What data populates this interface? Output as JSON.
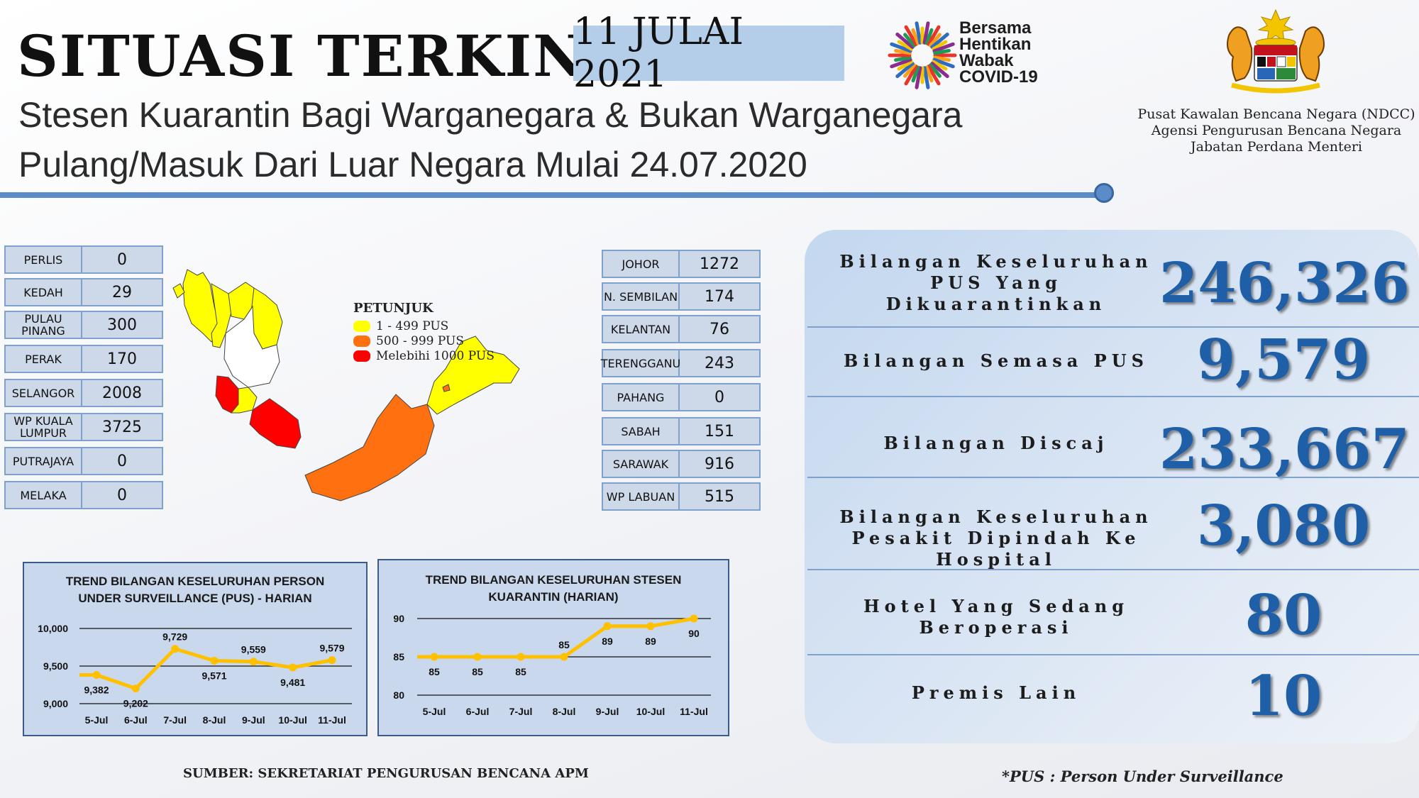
{
  "header": {
    "title": "SITUASI TERKINI",
    "date": "11 JULAI 2021",
    "subtitle_line1": "Stesen Kuarantin Bagi Warganegara & Bukan Warganegara",
    "subtitle_line2": "Pulang/Masuk Dari Luar Negara Mulai 24.07.2020"
  },
  "branding": {
    "campaign_lines": [
      "Bersama",
      "Hentikan",
      "Wabak",
      "COVID-19"
    ],
    "agency_lines": [
      "Pusat Kawalan Bencana Negara (NDCC)",
      "Agensi Pengurusan Bencana Negara",
      "Jabatan Perdana Menteri"
    ],
    "crest_icon": "malaysia-coat-of-arms-icon",
    "campaign_icon": "starburst-logo-icon"
  },
  "states_left": [
    {
      "name": "PERLIS",
      "value": "0"
    },
    {
      "name": "KEDAH",
      "value": "29"
    },
    {
      "name": "PULAU PINANG",
      "value": "300"
    },
    {
      "name": "PERAK",
      "value": "170"
    },
    {
      "name": "SELANGOR",
      "value": "2008"
    },
    {
      "name": "WP KUALA LUMPUR",
      "value": "3725"
    },
    {
      "name": "PUTRAJAYA",
      "value": "0"
    },
    {
      "name": "MELAKA",
      "value": "0"
    }
  ],
  "states_right": [
    {
      "name": "JOHOR",
      "value": "1272"
    },
    {
      "name": "N. SEMBILAN",
      "value": "174"
    },
    {
      "name": "KELANTAN",
      "value": "76"
    },
    {
      "name": "TERENGGANU",
      "value": "243"
    },
    {
      "name": "PAHANG",
      "value": "0"
    },
    {
      "name": "SABAH",
      "value": "151"
    },
    {
      "name": "SARAWAK",
      "value": "916"
    },
    {
      "name": "WP LABUAN",
      "value": "515"
    }
  ],
  "legend": {
    "title": "PETUNJUK",
    "items": [
      {
        "label": "1 - 499 PUS",
        "color": "#ffff00"
      },
      {
        "label": "500 - 999 PUS",
        "color": "#ff7010"
      },
      {
        "label": "Melebihi 1000 PUS",
        "color": "#ff0000"
      }
    ]
  },
  "map_colors": {
    "yellow": "#ffff00",
    "orange": "#ff7010",
    "red": "#ff0000",
    "white": "#ffffff"
  },
  "chart_data": [
    {
      "type": "line",
      "title_line1": "TREND BILANGAN KESELURUHAN PERSON",
      "title_line2": "UNDER SURVEILLANCE (PUS) - HARIAN",
      "categories": [
        "5-Jul",
        "6-Jul",
        "7-Jul",
        "8-Jul",
        "9-Jul",
        "10-Jul",
        "11-Jul"
      ],
      "values": [
        9382,
        9202,
        9729,
        9571,
        9559,
        9481,
        9579
      ],
      "value_labels": [
        "9,382",
        "9,202",
        "9,729",
        "9,571",
        "9,559",
        "9,481",
        "9,579"
      ],
      "ylim": [
        9000,
        10000
      ],
      "yticks": [
        "10,000",
        "9,500",
        "9,000"
      ],
      "ytick_values": [
        10000,
        9500,
        9000
      ],
      "color": "#ffc000",
      "grid": true
    },
    {
      "type": "line",
      "title_line1": "TREND BILANGAN KESELURUHAN STESEN",
      "title_line2": "KUARANTIN (HARIAN)",
      "categories": [
        "5-Jul",
        "6-Jul",
        "7-Jul",
        "8-Jul",
        "9-Jul",
        "10-Jul",
        "11-Jul"
      ],
      "values": [
        85,
        85,
        85,
        85,
        89,
        89,
        90
      ],
      "value_labels": [
        "85",
        "85",
        "85",
        "85",
        "89",
        "89",
        "90"
      ],
      "ylim": [
        80,
        90
      ],
      "yticks": [
        "90",
        "85",
        "80"
      ],
      "ytick_values": [
        90,
        85,
        80
      ],
      "color": "#ffc000",
      "grid": true
    }
  ],
  "stats": [
    {
      "label_lines": [
        "Bilangan Keseluruhan",
        "PUS Yang",
        "Dikuarantinkan"
      ],
      "value": "246,326"
    },
    {
      "label_lines": [
        "Bilangan Semasa PUS"
      ],
      "value": "9,579"
    },
    {
      "label_lines": [
        "Bilangan Discaj"
      ],
      "value": "233,667"
    },
    {
      "label_lines": [
        "Bilangan Keseluruhan",
        "Pesakit Dipindah Ke Hospital"
      ],
      "value": "3,080"
    },
    {
      "label_lines": [
        "Hotel Yang Sedang",
        "Beroperasi"
      ],
      "value": "80"
    },
    {
      "label_lines": [
        "Premis Lain"
      ],
      "value": "10"
    }
  ],
  "footer": {
    "source": "SUMBER: SEKRETARIAT PENGURUSAN BENCANA APM",
    "footnote": "*PUS : Person Under Surveillance"
  }
}
